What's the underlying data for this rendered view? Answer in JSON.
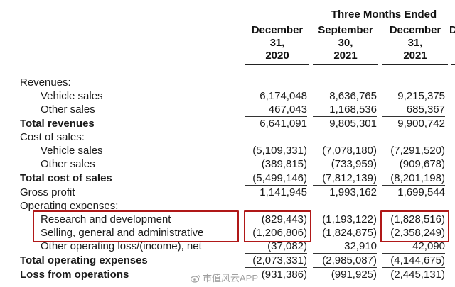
{
  "header": {
    "group_title": "Three Months Ended",
    "columns": [
      {
        "line1": "December",
        "line2": "31,",
        "line3": "2020"
      },
      {
        "line1": "September",
        "line2": "30,",
        "line3": "2021"
      },
      {
        "line1": "December",
        "line2": "31,",
        "line3": "2021"
      },
      {
        "line1": "D",
        "line2": "",
        "line3": ""
      }
    ]
  },
  "rows": [
    {
      "label": "Revenues:",
      "values": [
        "",
        "",
        ""
      ]
    },
    {
      "label": "Vehicle sales",
      "values": [
        "6,174,048",
        "8,636,765",
        "9,215,375"
      ]
    },
    {
      "label": "Other sales",
      "values": [
        "467,043",
        "1,168,536",
        "685,367"
      ]
    },
    {
      "label": "Total revenues",
      "values": [
        "6,641,091",
        "9,805,301",
        "9,900,742"
      ]
    },
    {
      "label": "Cost of sales:",
      "values": [
        "",
        "",
        ""
      ]
    },
    {
      "label": "Vehicle sales",
      "values": [
        "(5,109,331)",
        "(7,078,180)",
        "(7,291,520)"
      ]
    },
    {
      "label": "Other sales",
      "values": [
        "(389,815)",
        "(733,959)",
        "(909,678)"
      ]
    },
    {
      "label": "Total cost of sales",
      "values": [
        "(5,499,146)",
        "(7,812,139)",
        "(8,201,198)"
      ]
    },
    {
      "label": "Gross profit",
      "values": [
        "1,141,945",
        "1,993,162",
        "1,699,544"
      ]
    },
    {
      "label": "Operating expenses:",
      "values": [
        "",
        "",
        ""
      ]
    },
    {
      "label": "Research and development",
      "values": [
        "(829,443)",
        "(1,193,122)",
        "(1,828,516)"
      ]
    },
    {
      "label": "Selling, general and administrative",
      "values": [
        "(1,206,806)",
        "(1,824,875)",
        "(2,358,249)"
      ]
    },
    {
      "label": "Other operating loss/(income), net",
      "values": [
        "(37,082)",
        "32,910",
        "42,090"
      ]
    },
    {
      "label": "Total operating expenses",
      "values": [
        "(2,073,331)",
        "(2,985,087)",
        "(4,144,675)"
      ]
    },
    {
      "label": "Loss from operations",
      "values": [
        "(931,386)",
        "(991,925)",
        "(2,445,131)"
      ]
    }
  ],
  "watermark": {
    "text": "市值风云APP"
  },
  "colors": {
    "highlight": "#b01818"
  }
}
